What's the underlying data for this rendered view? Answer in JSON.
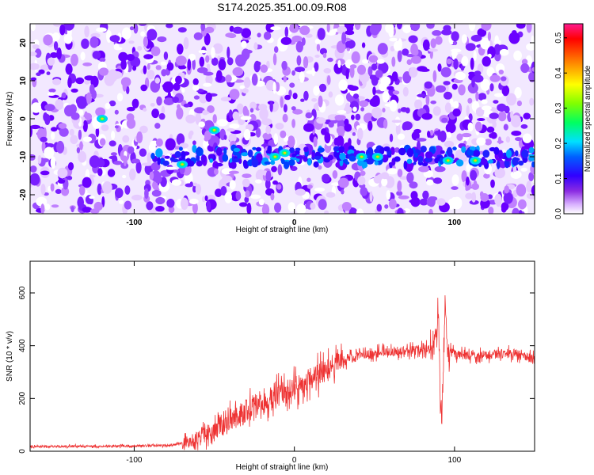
{
  "title": "S174.2025.351.00.09.R08",
  "chart_data": [
    {
      "type": "heatmap",
      "xlabel": "Height of straight line (km)",
      "ylabel": "Frequency (Hz)",
      "xlim": [
        -165,
        150
      ],
      "ylim": [
        -25,
        25
      ],
      "xticks": [
        -100,
        0,
        100
      ],
      "xtick_labels": [
        "-100",
        "0",
        "100"
      ],
      "yticks": [
        -20,
        -10,
        0,
        10,
        20
      ],
      "ytick_labels": [
        "-20",
        "-10",
        "0",
        "10",
        "20"
      ],
      "signal_band_center_hz": -10,
      "hotspots": [
        {
          "x": -120,
          "y": 0
        },
        {
          "x": -70,
          "y": -12
        },
        {
          "x": -50,
          "y": -3
        },
        {
          "x": -12,
          "y": -10
        },
        {
          "x": -6,
          "y": -9
        },
        {
          "x": 42,
          "y": -10
        },
        {
          "x": 52,
          "y": -10
        },
        {
          "x": 96,
          "y": -11
        },
        {
          "x": 113,
          "y": -11
        }
      ],
      "colorbar": {
        "label": "Normalized spectral amplitude",
        "range": [
          0.0,
          0.54
        ],
        "ticks": [
          0.0,
          0.1,
          0.2,
          0.3,
          0.4,
          0.5
        ],
        "tick_labels": [
          "0.0",
          "0.1",
          "0.2",
          "0.3",
          "0.4",
          "0.5"
        ],
        "colors": [
          "#ffffff",
          "#c080ff",
          "#7a1fff",
          "#2020ff",
          "#00c0ff",
          "#00ff80",
          "#80ff00",
          "#ffff00",
          "#ff8000",
          "#ff0000",
          "#ff0080"
        ]
      }
    },
    {
      "type": "line",
      "xlabel": "Height of straight line (km)",
      "ylabel": "SNR (10 * v/v)",
      "xlim": [
        -165,
        150
      ],
      "ylim": [
        0,
        720
      ],
      "xticks": [
        -100,
        0,
        100
      ],
      "xtick_labels": [
        "-100",
        "0",
        "100"
      ],
      "yticks": [
        0,
        200,
        400,
        600
      ],
      "ytick_labels": [
        "0",
        "200",
        "400",
        "600"
      ],
      "series": [
        {
          "name": "SNR",
          "color": "#ee3333",
          "x": [
            -165,
            -140,
            -120,
            -100,
            -80,
            -70,
            -60,
            -50,
            -40,
            -30,
            -20,
            -10,
            0,
            10,
            20,
            30,
            40,
            50,
            60,
            70,
            80,
            86,
            89,
            90,
            91,
            92,
            93,
            94,
            95,
            96,
            100,
            110,
            120,
            130,
            140,
            150
          ],
          "y": [
            18,
            18,
            19,
            20,
            22,
            30,
            48,
            80,
            120,
            150,
            180,
            210,
            240,
            275,
            310,
            340,
            360,
            370,
            378,
            380,
            385,
            390,
            430,
            530,
            220,
            130,
            300,
            560,
            440,
            380,
            370,
            360,
            365,
            370,
            370,
            345
          ]
        }
      ]
    }
  ]
}
